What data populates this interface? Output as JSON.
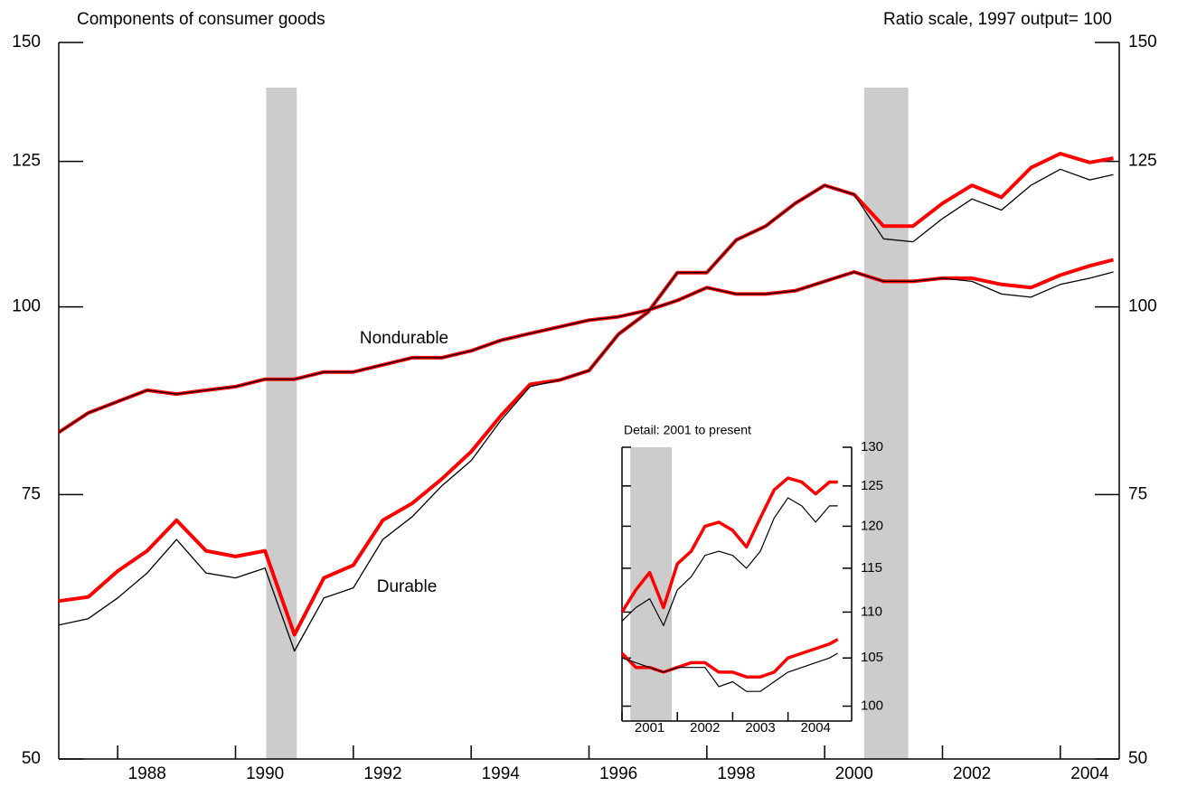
{
  "chart_data": [
    {
      "type": "line",
      "title": "Components of consumer goods",
      "subtitle": "Ratio scale, 1997 output= 100",
      "annotations": [
        "Nondurable",
        "Durable"
      ],
      "x": [
        1987.0,
        1987.5,
        1988.0,
        1988.5,
        1989.0,
        1989.5,
        1990.0,
        1990.5,
        1991.0,
        1991.5,
        1992.0,
        1992.5,
        1993.0,
        1993.5,
        1994.0,
        1994.5,
        1995.0,
        1995.5,
        1996.0,
        1996.5,
        1997.0,
        1997.5,
        1998.0,
        1998.5,
        1999.0,
        1999.5,
        2000.0,
        2000.5,
        2001.0,
        2001.5,
        2002.0,
        2002.5,
        2003.0,
        2003.5,
        2004.0,
        2004.5,
        2004.9
      ],
      "xlim": [
        1987,
        2005
      ],
      "xticks": [
        {
          "value": 1988,
          "label": "1988"
        },
        {
          "value": 1990,
          "label": "1990"
        },
        {
          "value": 1992,
          "label": "1992"
        },
        {
          "value": 1994,
          "label": "1994"
        },
        {
          "value": 1996,
          "label": "1996"
        },
        {
          "value": 1998,
          "label": "1998"
        },
        {
          "value": 2000,
          "label": "2000"
        },
        {
          "value": 2002,
          "label": "2002"
        },
        {
          "value": 2004,
          "label": "2004"
        }
      ],
      "ylim": [
        50,
        150
      ],
      "yticks": [
        50,
        75,
        100,
        125,
        150
      ],
      "log_scale": true,
      "recessions": [
        [
          1990.52,
          1991.04
        ],
        [
          2000.67,
          2001.42
        ]
      ],
      "recession_color": "#cccccc",
      "series": [
        {
          "color": "#ff0000",
          "width": 4,
          "values": [
            82.5,
            85,
            86.5,
            88,
            87.5,
            88,
            88.5,
            89.5,
            89.5,
            90.5,
            90.5,
            91.5,
            92.5,
            92.5,
            93.5,
            95,
            96,
            97,
            98,
            98.5,
            99.5,
            101,
            103,
            102,
            102,
            102.5,
            104,
            105.5,
            104,
            104,
            104.5,
            104.5,
            103.5,
            103,
            105,
            106.5,
            107.5
          ]
        },
        {
          "color": "#ff0000",
          "width": 4,
          "values": [
            63.7,
            64.1,
            66.7,
            68.8,
            72.1,
            68.8,
            68.2,
            68.8,
            60.5,
            66,
            67.3,
            72.1,
            74,
            76.8,
            80.1,
            84.6,
            88.8,
            89.4,
            90.7,
            95.9,
            99.2,
            105.4,
            105.4,
            110.8,
            113.2,
            117.2,
            120.5,
            118.8,
            113.2,
            113.2,
            117.2,
            120.5,
            118.3,
            123.8,
            126.5,
            124.8,
            125.6
          ]
        },
        {
          "color": "#000000",
          "width": 1.3,
          "values": [
            82.5,
            85,
            86.5,
            88,
            87.5,
            88,
            88.5,
            89.5,
            89.5,
            90.5,
            90.5,
            91.5,
            92.5,
            92.5,
            93.5,
            95,
            96,
            97,
            98,
            98.5,
            99.5,
            101,
            103,
            102,
            102,
            102.5,
            104,
            105.5,
            104,
            104,
            104.5,
            104,
            102,
            101.5,
            103.5,
            104.5,
            105.5
          ]
        },
        {
          "color": "#000000",
          "width": 1.3,
          "values": [
            61.4,
            62,
            64,
            66.5,
            70,
            66.5,
            66,
            67,
            59,
            64,
            65,
            70,
            72.5,
            76,
            79,
            84,
            88.5,
            89.4,
            90.7,
            95.9,
            99.2,
            105.4,
            105.4,
            110.8,
            113.2,
            117.2,
            120.5,
            118.8,
            111,
            110.5,
            114.5,
            118,
            116,
            120.5,
            123.5,
            121.5,
            122.5
          ]
        }
      ]
    },
    {
      "type": "line",
      "title": "Detail: 2001 to present",
      "x": [
        2001.0,
        2001.25,
        2001.5,
        2001.75,
        2002.0,
        2002.25,
        2002.5,
        2002.75,
        2003.0,
        2003.25,
        2003.5,
        2003.75,
        2004.0,
        2004.25,
        2004.5,
        2004.75,
        2004.9
      ],
      "xlim": [
        2001,
        2005.15
      ],
      "xticks": [
        {
          "value": 2001,
          "label": "2001"
        },
        {
          "value": 2002,
          "label": "2002"
        },
        {
          "value": 2003,
          "label": "2003"
        },
        {
          "value": 2004,
          "label": "2004"
        }
      ],
      "ylim": [
        98.5,
        130
      ],
      "yticks": [
        100,
        105,
        110,
        115,
        120,
        125,
        130
      ],
      "log_scale": true,
      "recessions": [
        [
          2001.15,
          2001.9
        ]
      ],
      "recession_color": "#cccccc",
      "series": [
        {
          "color": "#ff0000",
          "width": 3.5,
          "values": [
            110,
            112.5,
            114.5,
            110.5,
            115.5,
            117,
            120,
            120.5,
            119.5,
            117.5,
            121,
            124.5,
            126,
            125.5,
            124,
            125.5,
            125.5
          ]
        },
        {
          "color": "#ff0000",
          "width": 3.5,
          "values": [
            105.5,
            104,
            104,
            103.5,
            104,
            104.5,
            104.5,
            103.5,
            103.5,
            103,
            103,
            103.5,
            105,
            105.5,
            106,
            106.5,
            107
          ]
        },
        {
          "color": "#000000",
          "width": 1.2,
          "values": [
            109,
            110.5,
            111.5,
            108.5,
            112.5,
            114,
            116.5,
            117,
            116.5,
            115,
            117,
            121,
            123.5,
            122.5,
            120.5,
            122.5,
            122.5
          ]
        },
        {
          "color": "#000000",
          "width": 1.2,
          "values": [
            105,
            104.5,
            104,
            103.5,
            104,
            104,
            104,
            102,
            102.5,
            101.5,
            101.5,
            102.5,
            103.5,
            104,
            104.5,
            105,
            105.5
          ]
        }
      ]
    }
  ]
}
